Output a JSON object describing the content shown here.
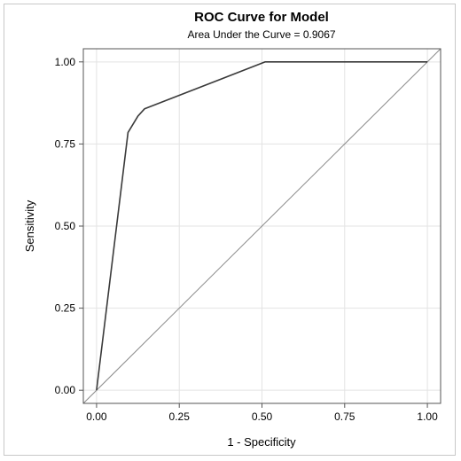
{
  "chart_data": {
    "type": "line",
    "title": "ROC Curve for Model",
    "subtitle": "Area Under the Curve = 0.9067",
    "xlabel": "1 - Specificity",
    "ylabel": "Sensitivity",
    "xlim": [
      -0.04,
      1.04
    ],
    "ylim": [
      -0.04,
      1.04
    ],
    "xticks": [
      "0.00",
      "0.25",
      "0.50",
      "0.75",
      "1.00"
    ],
    "yticks": [
      "0.00",
      "0.25",
      "0.50",
      "0.75",
      "1.00"
    ],
    "grid": true,
    "series": [
      {
        "x": [
          0.0,
          0.095,
          0.125,
          0.145,
          0.51,
          1.0
        ],
        "y": [
          0.0,
          0.785,
          0.835,
          0.857,
          1.0,
          1.0
        ],
        "color": "#3a3a3a"
      }
    ],
    "reference_line": {
      "x": [
        -0.04,
        1.04
      ],
      "y": [
        -0.04,
        1.04
      ],
      "color": "#8a8a8a"
    }
  }
}
